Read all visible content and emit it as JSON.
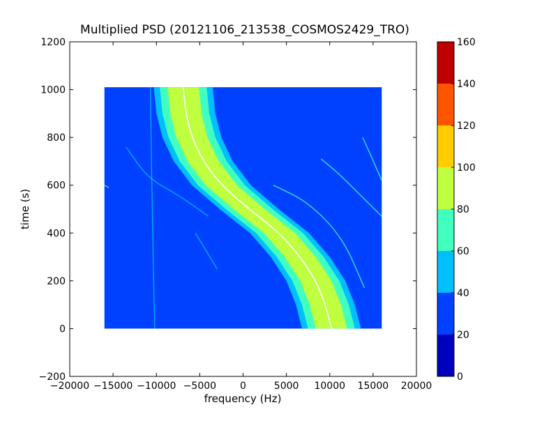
{
  "chart_data": {
    "type": "heatmap",
    "title": "Multiplied PSD (20121106_213538_COSMOS2429_TRO)",
    "xlabel": "frequency (Hz)",
    "ylabel": "time (s)",
    "xlim": [
      -20000,
      20000
    ],
    "ylim": [
      -200,
      1200
    ],
    "x_ticks": [
      -20000,
      -15000,
      -10000,
      -5000,
      0,
      5000,
      10000,
      15000,
      20000
    ],
    "x_tick_labels": [
      "−20000",
      "−15000",
      "−10000",
      "−5000",
      "0",
      "5000",
      "10000",
      "15000",
      "20000"
    ],
    "y_ticks": [
      -200,
      0,
      200,
      400,
      600,
      800,
      1000,
      1200
    ],
    "y_tick_labels": [
      "−200",
      "0",
      "200",
      "400",
      "600",
      "800",
      "1000",
      "1200"
    ],
    "image_extent": {
      "x": [
        -16000,
        16000
      ],
      "y": [
        0,
        1010
      ]
    },
    "background_value": 25,
    "band": {
      "description": "S-shaped doppler-shifted signal band",
      "center_points": [
        [
          10200,
          0
        ],
        [
          9500,
          100
        ],
        [
          8400,
          200
        ],
        [
          6600,
          300
        ],
        [
          4200,
          400
        ],
        [
          700,
          500
        ],
        [
          -2500,
          600
        ],
        [
          -4600,
          700
        ],
        [
          -5900,
          800
        ],
        [
          -6600,
          900
        ],
        [
          -6900,
          1010
        ]
      ],
      "levels": [
        {
          "half_width": 3400,
          "value": 55
        },
        {
          "half_width": 2700,
          "value": 72
        },
        {
          "half_width": 1800,
          "value": 85
        }
      ],
      "peak_line_value": 150
    },
    "traces": [
      {
        "points": [
          [
            14000,
            170
          ],
          [
            11500,
            380
          ],
          [
            7500,
            530
          ],
          [
            3500,
            600
          ]
        ],
        "value": 62
      },
      {
        "points": [
          [
            16000,
            470
          ],
          [
            13500,
            560
          ],
          [
            11000,
            650
          ],
          [
            9000,
            710
          ]
        ],
        "value": 62
      },
      {
        "points": [
          [
            16000,
            620
          ],
          [
            14800,
            720
          ],
          [
            13800,
            800
          ]
        ],
        "value": 62
      },
      {
        "points": [
          [
            -13500,
            760
          ],
          [
            -11000,
            630
          ],
          [
            -7500,
            560
          ],
          [
            -4000,
            470
          ]
        ],
        "value": 52
      },
      {
        "points": [
          [
            -10200,
            0
          ],
          [
            -10500,
            500
          ],
          [
            -10700,
            1010
          ]
        ],
        "value": 45
      },
      {
        "points": [
          [
            -5500,
            400
          ],
          [
            -3000,
            250
          ]
        ],
        "value": 48
      },
      {
        "points": [
          [
            -16000,
            600
          ],
          [
            -15500,
            590
          ]
        ],
        "value": 60
      }
    ],
    "colorbar": {
      "min": 0,
      "max": 160,
      "ticks": [
        0,
        20,
        40,
        60,
        80,
        100,
        120,
        140,
        160
      ],
      "tick_labels": [
        "0",
        "20",
        "40",
        "60",
        "80",
        "100",
        "120",
        "140",
        "160"
      ],
      "colors": [
        "#0000bf",
        "#0040ff",
        "#00bfff",
        "#40ffbf",
        "#bfff40",
        "#ffcc00",
        "#ff5500",
        "#bf0000"
      ]
    },
    "grid": false,
    "legend": "none"
  }
}
